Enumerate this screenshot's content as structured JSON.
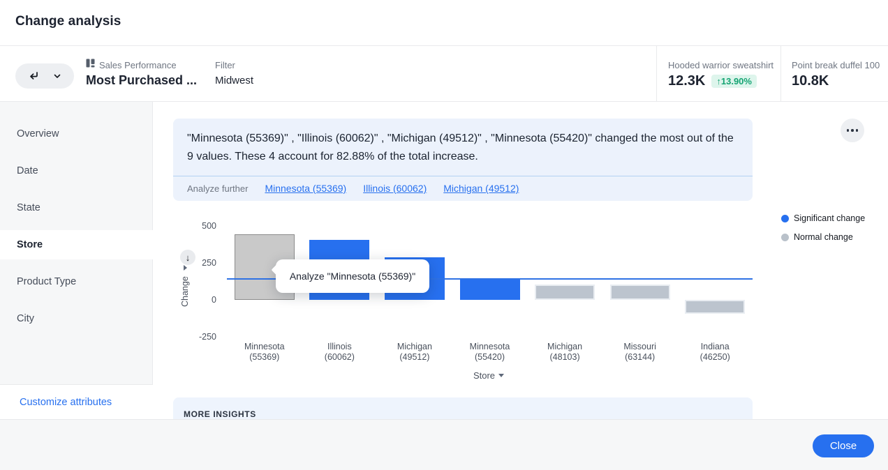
{
  "colors": {
    "accent_blue": "#2770ef",
    "significant": "#2770ef",
    "normal": "#bcc4ce",
    "hover_fill": "#c9c9c9",
    "hover_border": "#8b8b8b",
    "positive_green": "#15a473",
    "positive_bg": "#def5ec"
  },
  "header": {
    "title": "Change analysis"
  },
  "toolbar": {
    "source_label": "Sales Performance",
    "title": "Most Purchased ...",
    "filter_label": "Filter",
    "filter_value": "Midwest",
    "kpis": [
      {
        "label": "Hooded warrior sweatshirt",
        "value": "12.3K",
        "delta": "↑13.90%"
      },
      {
        "label": "Point break duffel 100",
        "value": "10.8K"
      }
    ]
  },
  "sidebar": {
    "items": [
      {
        "label": "Overview",
        "selected": false
      },
      {
        "label": "Date",
        "selected": false
      },
      {
        "label": "State",
        "selected": false
      },
      {
        "label": "Store",
        "selected": true
      },
      {
        "label": "Product Type",
        "selected": false
      },
      {
        "label": "City",
        "selected": false
      }
    ],
    "customize_label": "Customize attributes"
  },
  "insight": {
    "text": "\"Minnesota (55369)\" , \"Illinois (60062)\" , \"Michigan (49512)\" , \"Minnesota (55420)\" changed the most out of the 9 values. These 4 account for 82.88% of the total increase.",
    "analyze_label": "Analyze further",
    "links": [
      "Minnesota (55369)",
      "Illinois (60062)",
      "Michigan (49512)"
    ]
  },
  "tooltip": {
    "text": "Analyze \"Minnesota (55369)\""
  },
  "chart_data": {
    "type": "bar",
    "title": "",
    "xlabel": "Store",
    "ylabel": "Change",
    "ylim": [
      -250,
      500
    ],
    "yticks": [
      500,
      250,
      0,
      -250
    ],
    "grid": false,
    "reference_line": 140,
    "categories": [
      "Minnesota (55369)",
      "Illinois (60062)",
      "Michigan (49512)",
      "Minnesota (55420)",
      "Michigan (48103)",
      "Missouri (63144)",
      "Indiana (46250)"
    ],
    "values": [
      445,
      405,
      290,
      140,
      105,
      105,
      -95
    ],
    "styles": [
      "hovered",
      "significant",
      "significant",
      "significant",
      "normal",
      "normal",
      "normal"
    ],
    "legend_position": "right",
    "legend": [
      {
        "label": "Significant change",
        "color": "#2770ef"
      },
      {
        "label": "Normal change",
        "color": "#b9c1ca"
      }
    ]
  },
  "more_insights": {
    "title": "MORE INSIGHTS"
  },
  "footer": {
    "close_label": "Close"
  }
}
